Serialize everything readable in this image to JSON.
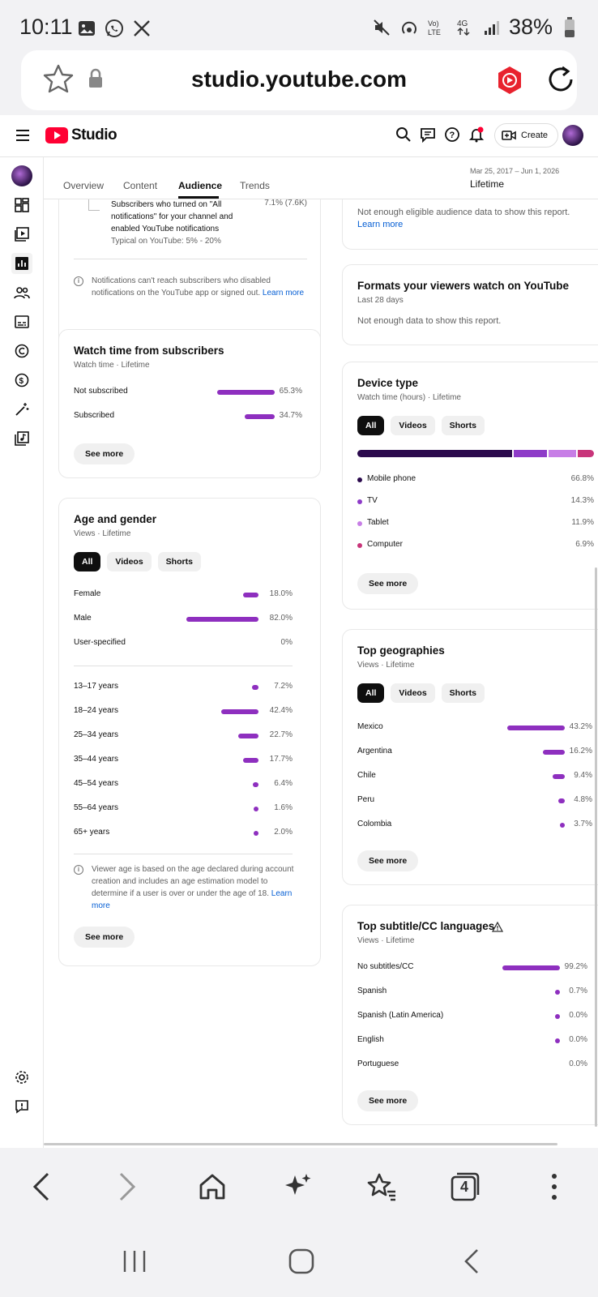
{
  "status_bar": {
    "time": "10:11",
    "battery": "38%"
  },
  "browser": {
    "url": "studio.youtube.com",
    "tab_count": "4"
  },
  "header": {
    "logo_text": "Studio",
    "create_label": "Create"
  },
  "tabs": [
    "Overview",
    "Content",
    "Audience",
    "Trends"
  ],
  "date_range": {
    "range": "Mar 25, 2017 – Jun 1, 2026",
    "label": "Lifetime"
  },
  "notifications_card": {
    "line1": "Subscribers who turned on \"All",
    "line2": "notifications\" for your channel and",
    "line3": "enabled YouTube notifications",
    "typical": "Typical on YouTube: 5% - 20%",
    "value": "7.1% (7.6K)",
    "note_line1": "Notifications can't reach subscribers who disabled",
    "note_line2": "notifications on the YouTube app or signed out.",
    "learn_more": "Learn more"
  },
  "watch_time_card": {
    "title": "Watch time from subscribers",
    "subtitle": "Watch time · Lifetime",
    "rows": [
      {
        "label": "Not subscribed",
        "value": "65.3%",
        "pct": 65.3
      },
      {
        "label": "Subscribed",
        "value": "34.7%",
        "pct": 34.7
      }
    ],
    "see_more": "See more"
  },
  "age_gender_card": {
    "title": "Age and gender",
    "subtitle": "Views · Lifetime",
    "pills": [
      "All",
      "Videos",
      "Shorts"
    ],
    "gender_rows": [
      {
        "label": "Female",
        "value": "18.0%",
        "pct": 18.0
      },
      {
        "label": "Male",
        "value": "82.0%",
        "pct": 82.0
      },
      {
        "label": "User-specified",
        "value": "0%",
        "pct": 0
      }
    ],
    "age_rows": [
      {
        "label": "13–17 years",
        "value": "7.2%",
        "pct": 7.2
      },
      {
        "label": "18–24 years",
        "value": "42.4%",
        "pct": 42.4
      },
      {
        "label": "25–34 years",
        "value": "22.7%",
        "pct": 22.7
      },
      {
        "label": "35–44 years",
        "value": "17.7%",
        "pct": 17.7
      },
      {
        "label": "45–54 years",
        "value": "6.4%",
        "pct": 6.4
      },
      {
        "label": "55–64 years",
        "value": "1.6%",
        "pct": 1.6
      },
      {
        "label": "65+ years",
        "value": "2.0%",
        "pct": 2.0
      }
    ],
    "note_line1": "Viewer age is based on the age declared during account",
    "note_line2": "creation and includes an age estimation model to",
    "note_line3": "determine if a user is over or under the age of 18.",
    "learn": "Learn",
    "more": "more",
    "see_more": "See more"
  },
  "eligible_card": {
    "text": "Not enough eligible audience data to show this report.",
    "learn_more": "Learn more"
  },
  "formats_card": {
    "title": "Formats your viewers watch on YouTube",
    "subtitle": "Last 28 days",
    "text": "Not enough data to show this report."
  },
  "device_card": {
    "title": "Device type",
    "subtitle": "Watch time (hours) · Lifetime",
    "pills": [
      "All",
      "Videos",
      "Shorts"
    ],
    "rows": [
      {
        "label": "Mobile phone",
        "value": "66.8%",
        "pct": 66.8,
        "color": "#2b0a4d"
      },
      {
        "label": "TV",
        "value": "14.3%",
        "pct": 14.3,
        "color": "#8e3bc8"
      },
      {
        "label": "Tablet",
        "value": "11.9%",
        "pct": 11.9,
        "color": "#c77ee6"
      },
      {
        "label": "Computer",
        "value": "6.9%",
        "pct": 6.9,
        "color": "#c8357a"
      }
    ],
    "see_more": "See more"
  },
  "geo_card": {
    "title": "Top geographies",
    "subtitle": "Views · Lifetime",
    "pills": [
      "All",
      "Videos",
      "Shorts"
    ],
    "rows": [
      {
        "label": "Mexico",
        "value": "43.2%",
        "pct": 43.2
      },
      {
        "label": "Argentina",
        "value": "16.2%",
        "pct": 16.2
      },
      {
        "label": "Chile",
        "value": "9.4%",
        "pct": 9.4
      },
      {
        "label": "Peru",
        "value": "4.8%",
        "pct": 4.8
      },
      {
        "label": "Colombia",
        "value": "3.7%",
        "pct": 3.7
      }
    ],
    "see_more": "See more"
  },
  "subtitle_card": {
    "title": "Top subtitle/CC languages",
    "subtitle": "Views · Lifetime",
    "rows": [
      {
        "label": "No subtitles/CC",
        "value": "99.2%",
        "pct": 99.2
      },
      {
        "label": "Spanish",
        "value": "0.7%",
        "pct": 0.7
      },
      {
        "label": "Spanish (Latin America)",
        "value": "0.0%",
        "pct": 0.01
      },
      {
        "label": "English",
        "value": "0.0%",
        "pct": 0.01
      },
      {
        "label": "Portuguese",
        "value": "0.0%",
        "pct": 0
      }
    ],
    "see_more": "See more"
  },
  "colors": {
    "accent": "#8e2fbf",
    "brand_red": "#ff0033",
    "link": "#065fd4"
  }
}
